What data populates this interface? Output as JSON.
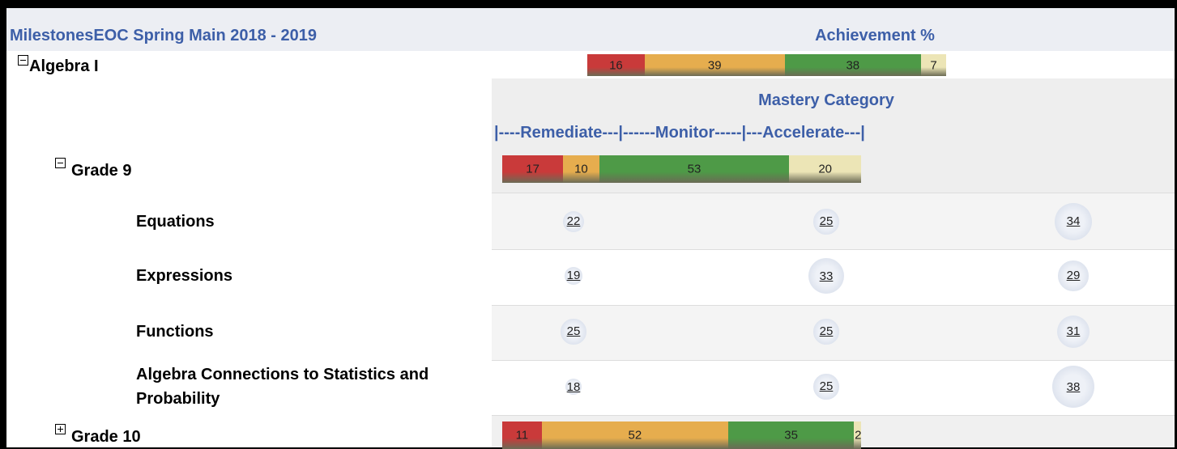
{
  "header": {
    "title": "MilestonesEOC  Spring Main  2018 - 2019",
    "achievement_title": "Achievement %"
  },
  "segment_colors": [
    "#c93a3a",
    "#e6ad4e",
    "#4e9a47",
    "#ece5b6"
  ],
  "subject": {
    "label": "Algebra I",
    "achievement": [
      16,
      39,
      38,
      7
    ]
  },
  "mastery": {
    "title": "Mastery Category",
    "scale": "|----Remediate---|------Monitor-----|---Accelerate---|"
  },
  "grades": [
    {
      "label": "Grade 9",
      "achievement": [
        17,
        10,
        53,
        20
      ],
      "domains": [
        {
          "label": "Equations",
          "values": [
            22,
            25,
            34
          ]
        },
        {
          "label": "Expressions",
          "values": [
            19,
            33,
            29
          ]
        },
        {
          "label": "Functions",
          "values": [
            25,
            25,
            31
          ]
        },
        {
          "label": "Algebra Connections to Statistics and Probability",
          "values": [
            18,
            25,
            38
          ]
        }
      ]
    },
    {
      "label": "Grade 10",
      "achievement": [
        11,
        52,
        35,
        2
      ]
    }
  ]
}
